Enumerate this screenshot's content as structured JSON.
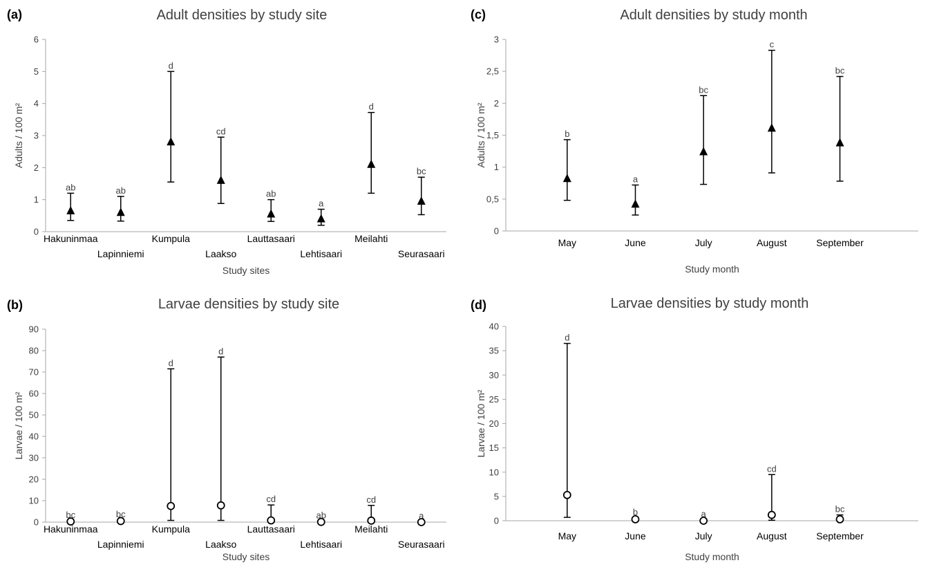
{
  "panels": [
    {
      "letter": "(a)"
    },
    {
      "letter": "(b)"
    },
    {
      "letter": "(c)"
    },
    {
      "letter": "(d)"
    }
  ],
  "chart_data": [
    {
      "type": "scatter",
      "title": "Adult densities by study site",
      "xlabel": "Study sites",
      "ylabel": "Adults / 100 m²",
      "ylim": [
        0,
        6
      ],
      "yticks": [
        0,
        1,
        2,
        3,
        4,
        5,
        6
      ],
      "ytick_labels": [
        "0",
        "1",
        "2",
        "3",
        "4",
        "5",
        "6"
      ],
      "marker": "filled-triangle",
      "staggered_labels": true,
      "categories": [
        "Hakuninmaa",
        "Lapinniemi",
        "Kumpula",
        "Laakso",
        "Lauttasaari",
        "Lehtisaari",
        "Meilahti",
        "Seurasaari"
      ],
      "values": [
        0.65,
        0.6,
        2.8,
        1.6,
        0.55,
        0.4,
        2.1,
        0.95
      ],
      "lower": [
        0.35,
        0.33,
        1.55,
        0.88,
        0.32,
        0.2,
        1.2,
        0.53
      ],
      "upper": [
        1.2,
        1.1,
        5.0,
        2.95,
        1.0,
        0.7,
        3.72,
        1.7
      ],
      "letters": [
        "ab",
        "ab",
        "d",
        "cd",
        "ab",
        "a",
        "d",
        "bc"
      ]
    },
    {
      "type": "scatter",
      "title": "Larvae densities by study site",
      "xlabel": "Study sites",
      "ylabel": "Larvae / 100 m²",
      "ylim": [
        0,
        90
      ],
      "yticks": [
        0,
        10,
        20,
        30,
        40,
        50,
        60,
        70,
        80,
        90
      ],
      "ytick_labels": [
        "0",
        "10",
        "20",
        "30",
        "40",
        "50",
        "60",
        "70",
        "80",
        "90"
      ],
      "marker": "open-circle",
      "staggered_labels": true,
      "categories": [
        "Hakuninmaa",
        "Lapinniemi",
        "Kumpula",
        "Laakso",
        "Lauttasaari",
        "Lehtisaari",
        "Meilahti",
        "Seurasaari"
      ],
      "values": [
        0.3,
        0.5,
        7.5,
        7.8,
        0.8,
        0.1,
        0.7,
        0.0
      ],
      "lower": [
        0.0,
        0.0,
        0.8,
        0.8,
        0.1,
        0.0,
        0.1,
        0.0
      ],
      "upper": [
        0.6,
        1.0,
        71.5,
        77.0,
        8.0,
        0.5,
        7.8,
        0.3
      ],
      "letters": [
        "bc",
        "bc",
        "d",
        "d",
        "cd",
        "ab",
        "cd",
        "a"
      ]
    },
    {
      "type": "scatter",
      "title": "Adult densities by study month",
      "xlabel": "Study month",
      "ylabel": "Adults / 100 m²",
      "ylim": [
        0,
        3
      ],
      "yticks": [
        0,
        0.5,
        1,
        1.5,
        2,
        2.5,
        3
      ],
      "ytick_labels": [
        "0",
        "0,5",
        "1",
        "1,5",
        "2",
        "2,5",
        "3"
      ],
      "marker": "filled-triangle",
      "staggered_labels": false,
      "categories": [
        "May",
        "June",
        "July",
        "August",
        "September"
      ],
      "values": [
        0.82,
        0.42,
        1.24,
        1.61,
        1.38
      ],
      "lower": [
        0.48,
        0.25,
        0.73,
        0.91,
        0.78
      ],
      "upper": [
        1.43,
        0.72,
        2.12,
        2.83,
        2.42
      ],
      "letters": [
        "b",
        "a",
        "bc",
        "c",
        "bc"
      ]
    },
    {
      "type": "scatter",
      "title": "Larvae densities by study month",
      "xlabel": "Study month",
      "ylabel": "Larvae / 100 m²",
      "ylim": [
        0,
        40
      ],
      "yticks": [
        0,
        5,
        10,
        15,
        20,
        25,
        30,
        35,
        40
      ],
      "ytick_labels": [
        "0",
        "5",
        "10",
        "15",
        "20",
        "25",
        "30",
        "35",
        "40"
      ],
      "marker": "open-circle",
      "staggered_labels": false,
      "categories": [
        "May",
        "June",
        "July",
        "August",
        "September"
      ],
      "values": [
        5.3,
        0.3,
        0.0,
        1.2,
        0.3
      ],
      "lower": [
        0.7,
        0.0,
        0.0,
        0.1,
        0.0
      ],
      "upper": [
        36.5,
        0.6,
        0.2,
        9.5,
        1.2
      ],
      "letters": [
        "d",
        "b",
        "a",
        "cd",
        "bc"
      ]
    }
  ]
}
